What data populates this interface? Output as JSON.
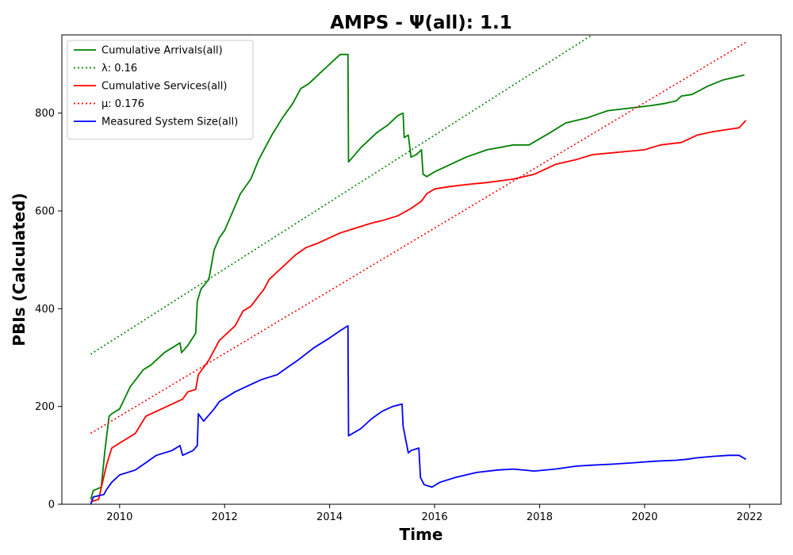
{
  "chart_data": {
    "type": "line",
    "title": "AMPS -  Ψ(all): 1.1",
    "xlabel": "Time",
    "ylabel": "PBIs (Calculated)",
    "xlim": [
      2008.9,
      2022.6
    ],
    "ylim": [
      0,
      960
    ],
    "xticks": [
      2010,
      2012,
      2014,
      2016,
      2018,
      2020,
      2022
    ],
    "yticks": [
      0,
      200,
      400,
      600,
      800
    ],
    "grid": false,
    "legend_position": "upper-left",
    "series": [
      {
        "name": "Cumulative Arrivals(all)",
        "color": "#008000",
        "style": "solid",
        "x": [
          2009.45,
          2009.5,
          2009.65,
          2009.72,
          2009.8,
          2009.85,
          2010.0,
          2010.2,
          2010.45,
          2010.6,
          2010.85,
          2011.0,
          2011.15,
          2011.18,
          2011.3,
          2011.45,
          2011.48,
          2011.55,
          2011.7,
          2011.8,
          2011.9,
          2012.0,
          2012.1,
          2012.3,
          2012.5,
          2012.65,
          2012.75,
          2012.9,
          2013.1,
          2013.3,
          2013.45,
          2013.6,
          2013.8,
          2014.0,
          2014.2,
          2014.35,
          2014.36,
          2014.6,
          2014.9,
          2015.1,
          2015.3,
          2015.4,
          2015.42,
          2015.5,
          2015.55,
          2015.65,
          2015.75,
          2015.78,
          2015.85,
          2016.0,
          2016.3,
          2016.6,
          2017.0,
          2017.5,
          2017.8,
          2018.2,
          2018.5,
          2018.9,
          2019.3,
          2019.7,
          2020.1,
          2020.4,
          2020.6,
          2020.7,
          2020.9,
          2021.2,
          2021.5,
          2021.9
        ],
        "y": [
          10,
          28,
          35,
          110,
          180,
          185,
          195,
          240,
          275,
          285,
          310,
          320,
          330,
          310,
          325,
          350,
          415,
          440,
          460,
          520,
          545,
          560,
          585,
          635,
          665,
          705,
          725,
          755,
          790,
          820,
          850,
          860,
          880,
          900,
          920,
          920,
          700,
          730,
          760,
          775,
          795,
          800,
          750,
          755,
          710,
          715,
          725,
          675,
          670,
          680,
          695,
          710,
          725,
          735,
          735,
          760,
          780,
          790,
          805,
          810,
          815,
          820,
          825,
          835,
          838,
          855,
          868,
          878
        ]
      },
      {
        "name": "λ: 0.16",
        "color": "#008000",
        "style": "dotted",
        "x": [
          2009.45,
          2019.0
        ],
        "y": [
          307,
          960
        ]
      },
      {
        "name": "Cumulative Services(all)",
        "color": "#ff0000",
        "style": "solid",
        "x": [
          2009.45,
          2009.6,
          2009.75,
          2009.85,
          2010.0,
          2010.3,
          2010.5,
          2010.9,
          2011.2,
          2011.3,
          2011.45,
          2011.5,
          2011.7,
          2011.9,
          2012.0,
          2012.2,
          2012.35,
          2012.5,
          2012.75,
          2012.85,
          2013.0,
          2013.2,
          2013.35,
          2013.55,
          2013.8,
          2014.0,
          2014.2,
          2014.5,
          2014.8,
          2015.0,
          2015.3,
          2015.55,
          2015.75,
          2015.85,
          2016.0,
          2016.3,
          2016.7,
          2017.0,
          2017.5,
          2017.9,
          2018.3,
          2018.7,
          2019.0,
          2019.5,
          2020.0,
          2020.3,
          2020.7,
          2021.0,
          2021.3,
          2021.8,
          2021.93
        ],
        "y": [
          5,
          10,
          80,
          115,
          125,
          145,
          180,
          200,
          215,
          230,
          235,
          265,
          295,
          335,
          345,
          365,
          395,
          405,
          440,
          460,
          475,
          495,
          510,
          525,
          535,
          545,
          555,
          565,
          575,
          580,
          590,
          605,
          620,
          635,
          645,
          650,
          655,
          658,
          665,
          675,
          695,
          705,
          715,
          720,
          725,
          735,
          740,
          755,
          762,
          770,
          785
        ]
      },
      {
        "name": "μ: 0.176",
        "color": "#ff0000",
        "style": "dotted",
        "x": [
          2009.45,
          2021.93
        ],
        "y": [
          145,
          945
        ]
      },
      {
        "name": "Measured System Size(all)",
        "color": "#0000ff",
        "style": "solid",
        "x": [
          2009.45,
          2009.5,
          2009.7,
          2009.75,
          2009.85,
          2010.0,
          2010.3,
          2010.5,
          2010.7,
          2011.0,
          2011.15,
          2011.2,
          2011.4,
          2011.48,
          2011.5,
          2011.6,
          2011.8,
          2011.9,
          2012.2,
          2012.5,
          2012.7,
          2013.0,
          2013.2,
          2013.4,
          2013.7,
          2014.0,
          2014.2,
          2014.35,
          2014.36,
          2014.6,
          2014.8,
          2015.0,
          2015.2,
          2015.38,
          2015.4,
          2015.5,
          2015.55,
          2015.7,
          2015.73,
          2015.8,
          2015.95,
          2016.1,
          2016.4,
          2016.8,
          2017.2,
          2017.5,
          2017.9,
          2018.3,
          2018.7,
          2019.0,
          2019.4,
          2019.8,
          2020.2,
          2020.6,
          2020.8,
          2021.0,
          2021.3,
          2021.6,
          2021.8,
          2021.93
        ],
        "y": [
          0,
          15,
          20,
          30,
          45,
          60,
          70,
          85,
          100,
          110,
          120,
          100,
          110,
          120,
          185,
          170,
          195,
          210,
          230,
          245,
          255,
          265,
          280,
          295,
          320,
          340,
          355,
          365,
          140,
          155,
          175,
          190,
          200,
          205,
          160,
          105,
          110,
          115,
          55,
          40,
          35,
          45,
          55,
          65,
          70,
          72,
          68,
          72,
          78,
          80,
          82,
          85,
          88,
          90,
          92,
          95,
          98,
          100,
          100,
          92
        ]
      }
    ]
  }
}
